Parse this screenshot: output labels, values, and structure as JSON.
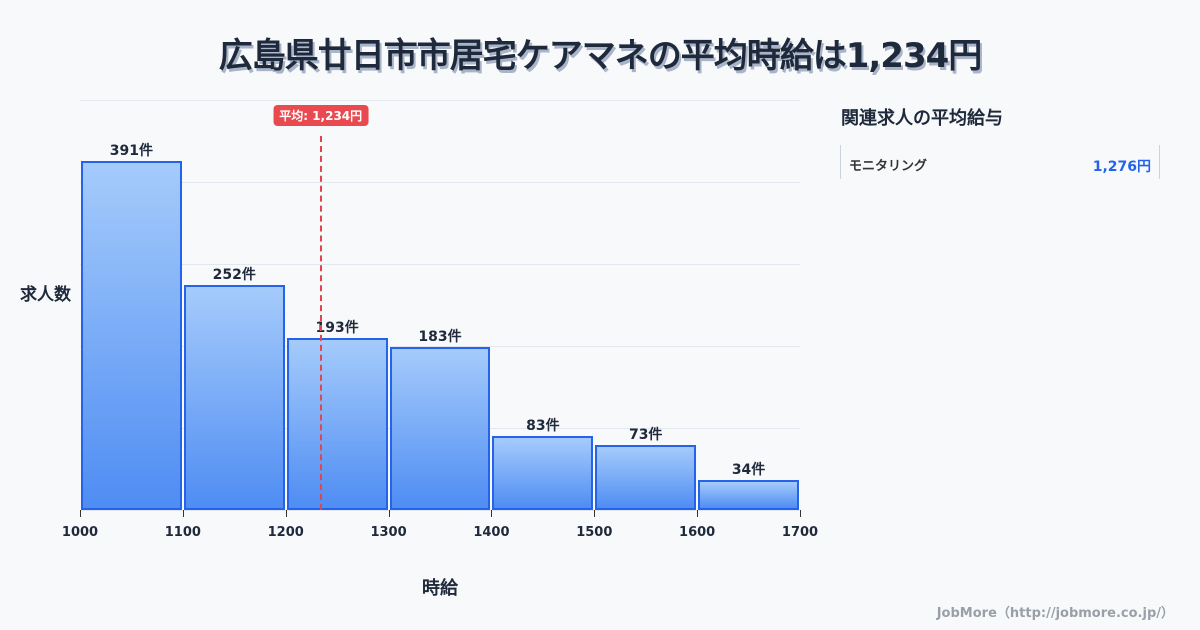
{
  "title": "広島県廿日市市居宅ケアマネの平均時給は1,234円",
  "mean_badge": "平均: 1,234円",
  "ylabel": "求人数",
  "xlabel": "時給",
  "side_panel": {
    "title": "関連求人の平均給与",
    "items": [
      {
        "name": "モニタリング",
        "value": "1,276円"
      }
    ]
  },
  "credit": "JobMore（http://jobmore.co.jp/）",
  "colors": {
    "bar_fill_top": "#a5cbfb",
    "bar_fill_bottom": "#4f8df3",
    "bar_border": "#2563eb",
    "mean_line": "#e0474c",
    "side_value": "#2563eb"
  },
  "chart_data": {
    "type": "bar",
    "title": "広島県廿日市市居宅ケアマネの平均時給は1,234円",
    "xlabel": "時給",
    "ylabel": "求人数",
    "bins": [
      [
        1000,
        1100
      ],
      [
        1100,
        1200
      ],
      [
        1200,
        1300
      ],
      [
        1300,
        1400
      ],
      [
        1400,
        1500
      ],
      [
        1500,
        1600
      ],
      [
        1600,
        1700
      ]
    ],
    "categories": [
      "1000-1100",
      "1100-1200",
      "1200-1300",
      "1300-1400",
      "1400-1500",
      "1500-1600",
      "1600-1700"
    ],
    "values": [
      391,
      252,
      193,
      183,
      83,
      73,
      34
    ],
    "value_labels": [
      "391件",
      "252件",
      "193件",
      "183件",
      "83件",
      "73件",
      "34件"
    ],
    "x_ticks": [
      "1000",
      "1100",
      "1200",
      "1300",
      "1400",
      "1500",
      "1600",
      "1700"
    ],
    "xlim": [
      1000,
      1700
    ],
    "ylim": [
      0,
      459
    ],
    "grid": true,
    "mean": 1234,
    "mean_label": "平均: 1,234円"
  }
}
